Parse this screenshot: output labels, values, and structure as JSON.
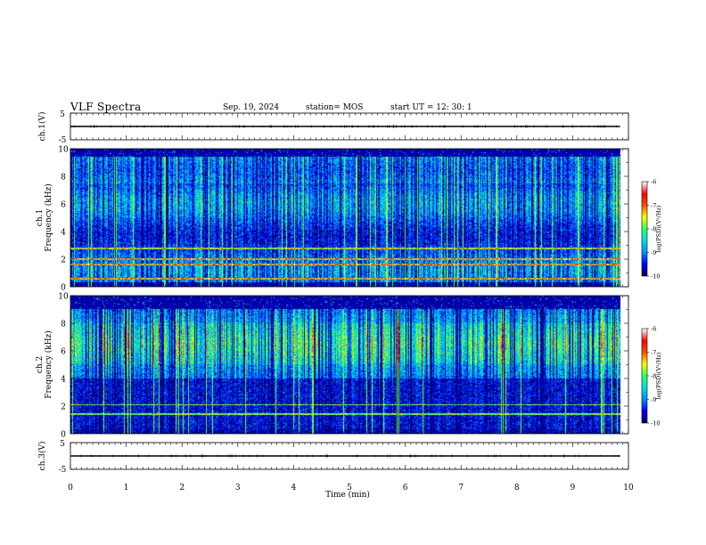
{
  "header": {
    "title": "VLF Spectra",
    "date": "Sep. 19, 2024",
    "station": "station= MOS",
    "start_ut": "start  UT =   12: 30: 1"
  },
  "chart_data": [
    {
      "type": "line",
      "panel": "ch1-waveform",
      "ylabel": "ch.1(V)",
      "ylim": [
        -5,
        5
      ],
      "y_ticks": [
        "5",
        "-5"
      ],
      "xlim": [
        0,
        10
      ],
      "series": [
        {
          "x": [
            0,
            9.85
          ],
          "values": [
            0,
            0
          ]
        }
      ]
    },
    {
      "type": "heatmap",
      "panel": "ch1-spectrogram",
      "ylabel": "ch.1\nFrequency (kHz)",
      "ylim": [
        0,
        10
      ],
      "y_ticks": [
        "0",
        "2",
        "4",
        "6",
        "8",
        "10"
      ],
      "xlim": [
        0,
        10
      ],
      "x_data_end": 9.85,
      "dominant_band_khz": [
        0.3,
        9.4
      ],
      "colorbar": {
        "label": "log(PSD)(V²/Hz)",
        "range": [
          -10,
          -6
        ],
        "ticks": [
          "-6",
          "-7",
          "-8",
          "-9",
          "-10"
        ]
      }
    },
    {
      "type": "heatmap",
      "panel": "ch2-spectrogram",
      "ylabel": "ch.2\nFrequency (kHz)",
      "ylim": [
        0,
        10
      ],
      "y_ticks": [
        "0",
        "2",
        "4",
        "6",
        "8",
        "10"
      ],
      "xlim": [
        0,
        10
      ],
      "x_data_end": 9.85,
      "dominant_band_khz": [
        4,
        9
      ],
      "colorbar": {
        "label": "log(PSD)(V²/Hz)",
        "range": [
          -10,
          -6
        ],
        "ticks": [
          "-6",
          "-7",
          "-8",
          "-9",
          "-10"
        ]
      }
    },
    {
      "type": "line",
      "panel": "ch3-waveform",
      "ylabel": "ch.3(V)",
      "ylim": [
        -5,
        5
      ],
      "y_ticks": [
        "5",
        "-5"
      ],
      "xlim": [
        0,
        10
      ],
      "xlabel": "Time (min)",
      "x_ticks": [
        "0",
        "1",
        "2",
        "3",
        "4",
        "5",
        "6",
        "7",
        "8",
        "9",
        "10"
      ],
      "series": [
        {
          "x": [
            0,
            9.85
          ],
          "values": [
            0,
            0
          ]
        }
      ]
    }
  ],
  "colormap": [
    "#000060",
    "#0000ff",
    "#0090ff",
    "#00e0e0",
    "#30ff60",
    "#ffff00",
    "#ff5000",
    "#ff0000",
    "#ffffff"
  ]
}
